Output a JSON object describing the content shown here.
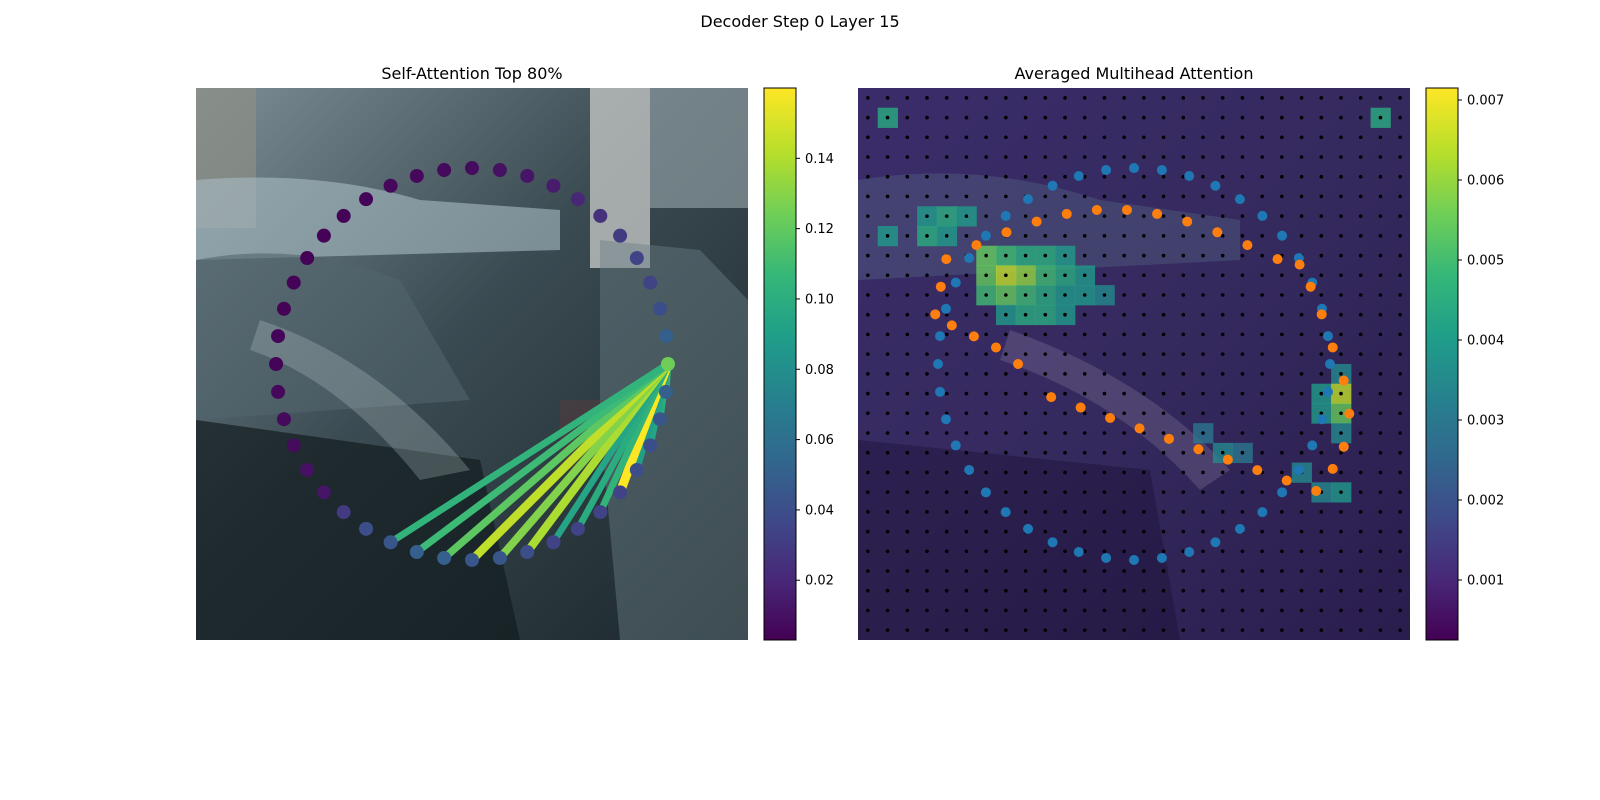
{
  "figure": {
    "suptitle": "Decoder Step 0 Layer 15"
  },
  "colors": {
    "viridis": [
      "#440154",
      "#482878",
      "#3e4a89",
      "#31688e",
      "#26828e",
      "#1f9e89",
      "#35b779",
      "#6ece58",
      "#b5de2b",
      "#fde725"
    ],
    "tab_blue": "#1f77b4",
    "tab_orange": "#ff7f0e",
    "grid_dot": "#000000",
    "photo_dark": "#1c2a30",
    "photo_mid": "#5a6e78",
    "photo_light": "#b8c4c8"
  },
  "chart_data": [
    {
      "type": "scatter",
      "title": "Self-Attention Top 80%",
      "description_note": "",
      "ring_center": [
        0,
        0
      ],
      "ring_radius": 1,
      "num_points": 44,
      "query_index": 0,
      "point_attention": [
        0.125,
        0.05,
        0.04,
        0.035,
        0.035,
        0.03,
        0.025,
        0.02,
        0.015,
        0.012,
        0.01,
        0.008,
        0.007,
        0.006,
        0.006,
        0.005,
        0.004,
        0.004,
        0.004,
        0.004,
        0.004,
        0.005,
        0.005,
        0.006,
        0.007,
        0.008,
        0.01,
        0.012,
        0.03,
        0.04,
        0.045,
        0.05,
        0.05,
        0.045,
        0.045,
        0.04,
        0.035,
        0.035,
        0.035,
        0.035,
        0.04,
        0.04,
        0.045,
        0.05
      ],
      "line_attention": [
        0.11,
        0.105,
        0.1,
        0.095,
        0.09,
        0.16,
        0.105,
        0.1,
        0.095,
        0.14,
        0.13,
        0.145,
        0.12,
        0.11,
        0.105
      ],
      "line_targets": [
        44,
        43,
        42,
        41,
        40,
        39,
        38,
        37,
        36,
        35,
        34,
        33,
        32,
        31,
        30
      ],
      "colorbar": {
        "cmap": "viridis",
        "vmin": 0.003,
        "vmax": 0.16,
        "ticks": [
          0.02,
          0.04,
          0.06,
          0.08,
          0.1,
          0.12,
          0.14
        ],
        "tick_labels": [
          "0.02",
          "0.04",
          "0.06",
          "0.08",
          "0.10",
          "0.12",
          "0.14"
        ]
      }
    },
    {
      "type": "heatmap",
      "title": "Averaged Multihead Attention",
      "grid_size": 28,
      "series": [
        {
          "name": "",
          "color": "#1f77b4",
          "kind": "reference_ring"
        },
        {
          "name": "",
          "color": "#ff7f0e",
          "kind": "predicted_points"
        }
      ],
      "hot_cells": [
        [
          1,
          1,
          0.0045
        ],
        [
          1,
          26,
          0.0045
        ],
        [
          6,
          3,
          0.004
        ],
        [
          6,
          4,
          0.0045
        ],
        [
          6,
          5,
          0.004
        ],
        [
          7,
          1,
          0.004
        ],
        [
          7,
          3,
          0.0045
        ],
        [
          7,
          4,
          0.004
        ],
        [
          8,
          6,
          0.0055
        ],
        [
          8,
          7,
          0.005
        ],
        [
          8,
          8,
          0.0045
        ],
        [
          8,
          9,
          0.0045
        ],
        [
          8,
          10,
          0.004
        ],
        [
          9,
          6,
          0.0055
        ],
        [
          9,
          7,
          0.0065
        ],
        [
          9,
          8,
          0.006
        ],
        [
          9,
          9,
          0.005
        ],
        [
          9,
          10,
          0.0045
        ],
        [
          9,
          11,
          0.004
        ],
        [
          10,
          6,
          0.005
        ],
        [
          10,
          7,
          0.0055
        ],
        [
          10,
          8,
          0.005
        ],
        [
          10,
          9,
          0.0045
        ],
        [
          10,
          10,
          0.004
        ],
        [
          10,
          11,
          0.004
        ],
        [
          10,
          12,
          0.0035
        ],
        [
          11,
          7,
          0.004
        ],
        [
          11,
          8,
          0.0045
        ],
        [
          11,
          9,
          0.0045
        ],
        [
          11,
          10,
          0.004
        ],
        [
          14,
          24,
          0.0035
        ],
        [
          15,
          23,
          0.004
        ],
        [
          15,
          24,
          0.0065
        ],
        [
          16,
          24,
          0.0055
        ],
        [
          16,
          23,
          0.004
        ],
        [
          17,
          24,
          0.0035
        ],
        [
          17,
          17,
          0.003
        ],
        [
          18,
          18,
          0.0035
        ],
        [
          18,
          19,
          0.003
        ],
        [
          19,
          22,
          0.0035
        ],
        [
          20,
          23,
          0.0035
        ],
        [
          20,
          24,
          0.004
        ]
      ],
      "base_value": 0.0012,
      "colorbar": {
        "cmap": "viridis",
        "vmin": 0.00025,
        "vmax": 0.00715,
        "ticks": [
          0.001,
          0.002,
          0.003,
          0.004,
          0.005,
          0.006,
          0.007
        ],
        "tick_labels": [
          "0.001",
          "0.002",
          "0.003",
          "0.004",
          "0.005",
          "0.006",
          "0.007"
        ]
      }
    }
  ]
}
